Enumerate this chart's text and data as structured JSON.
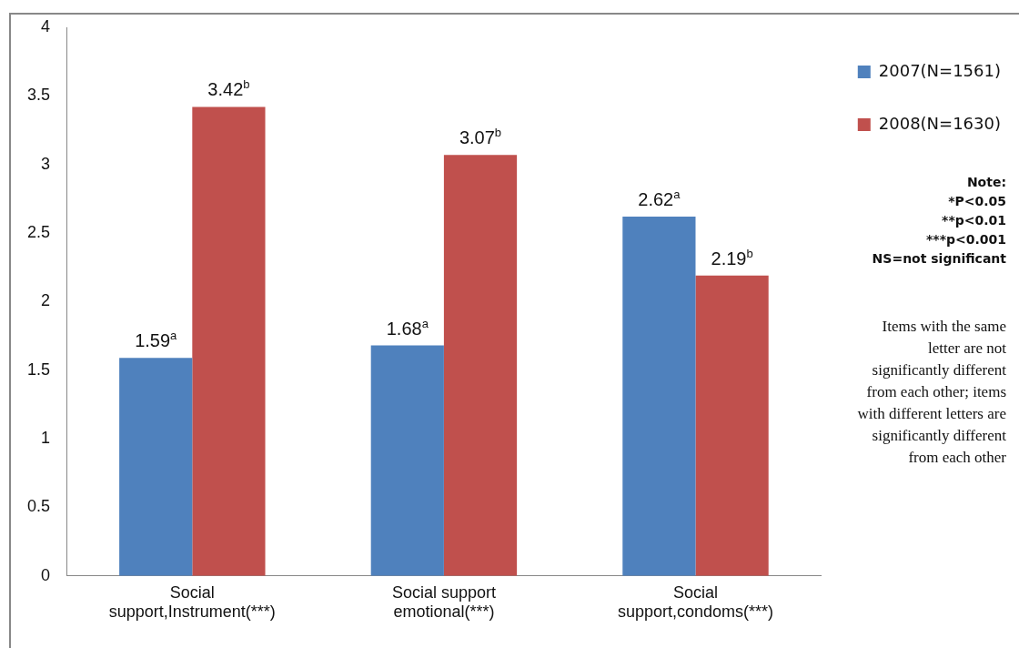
{
  "chart_data": {
    "type": "bar",
    "categories": [
      "Social support,Instrument(***)",
      "Social support emotional(***)",
      "Social support,condoms(***)"
    ],
    "series": [
      {
        "name": "2007(N=1561)",
        "color": "#4f81bd",
        "values": [
          1.59,
          1.68,
          2.62
        ],
        "value_labels": [
          "1.59$^{a}$",
          "1.68$^{a}$",
          "2.62$^{a}$"
        ]
      },
      {
        "name": "2008(N=1630)",
        "color": "#c0504d",
        "values": [
          3.42,
          3.07,
          2.19
        ],
        "value_labels": [
          "3.42$^{b}$",
          "3.07$^{b}$",
          "2.19$^{b}$"
        ]
      }
    ],
    "ylim": [
      0,
      4
    ],
    "yticks": [
      0,
      0.5,
      1,
      1.5,
      2,
      2.5,
      3,
      3.5,
      4
    ],
    "grid": false,
    "legend": "top right",
    "annotations": [
      "Note:",
      "*P<0.05",
      "**p<0.01",
      "***p<0.001",
      "NS=not significant",
      "Items with the same letter are not significantly different from each other; items with different letters are significantly different from each other"
    ]
  }
}
